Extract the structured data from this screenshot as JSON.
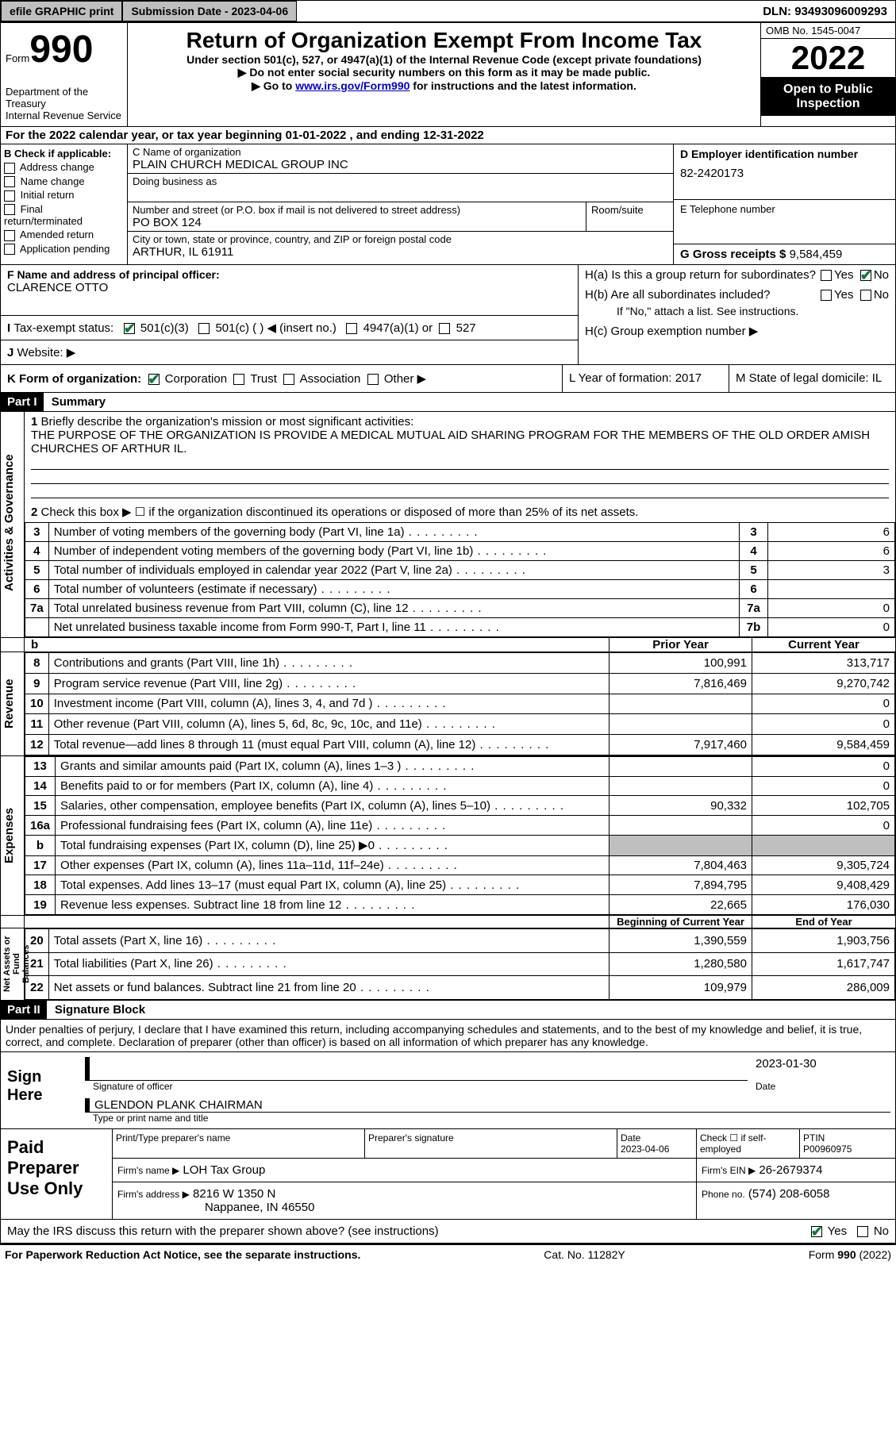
{
  "topbar": {
    "efile": "efile GRAPHIC print",
    "submission_label": "Submission Date - 2023-04-06",
    "dln_label": "DLN: 93493096009293"
  },
  "header": {
    "form_word": "Form",
    "form_no": "990",
    "dept": "Department of the Treasury",
    "irs": "Internal Revenue Service",
    "title": "Return of Organization Exempt From Income Tax",
    "sub1": "Under section 501(c), 527, or 4947(a)(1) of the Internal Revenue Code (except private foundations)",
    "sub2": "▶ Do not enter social security numbers on this form as it may be made public.",
    "sub3_a": "▶ Go to ",
    "sub3_link": "www.irs.gov/Form990",
    "sub3_b": " for instructions and the latest information.",
    "omb": "OMB No. 1545-0047",
    "year": "2022",
    "open": "Open to Public Inspection"
  },
  "A": {
    "text": "For the 2022 calendar year, or tax year beginning 01-01-2022    , and ending 12-31-2022"
  },
  "B": {
    "label": "B Check if applicable:",
    "opts": [
      "Address change",
      "Name change",
      "Initial return",
      "Final return/terminated",
      "Amended return",
      "Application pending"
    ]
  },
  "C": {
    "name_lbl": "C Name of organization",
    "name": "PLAIN CHURCH MEDICAL GROUP INC",
    "dba_lbl": "Doing business as",
    "addr_lbl": "Number and street (or P.O. box if mail is not delivered to street address)",
    "room_lbl": "Room/suite",
    "addr": "PO BOX 124",
    "city_lbl": "City or town, state or province, country, and ZIP or foreign postal code",
    "city": "ARTHUR, IL  61911"
  },
  "D": {
    "lbl": "D Employer identification number",
    "val": "82-2420173"
  },
  "E": {
    "lbl": "E Telephone number"
  },
  "G": {
    "lbl": "G Gross receipts $",
    "val": "9,584,459"
  },
  "F": {
    "lbl": "F  Name and address of principal officer:",
    "val": "CLARENCE OTTO"
  },
  "H": {
    "a_lbl": "H(a)  Is this a group return for subordinates?",
    "b_lbl": "H(b)  Are all subordinates included?",
    "b_note": "If \"No,\" attach a list. See instructions.",
    "c_lbl": "H(c)  Group exemption number ▶",
    "yes": "Yes",
    "no": "No"
  },
  "I": {
    "lbl": "Tax-exempt status:",
    "o1": "501(c)(3)",
    "o2": "501(c) (  ) ◀ (insert no.)",
    "o3": "4947(a)(1) or",
    "o4": "527"
  },
  "J": {
    "lbl": "Website: ▶"
  },
  "K": {
    "lbl": "K Form of organization:",
    "o1": "Corporation",
    "o2": "Trust",
    "o3": "Association",
    "o4": "Other ▶"
  },
  "L": {
    "lbl": "L Year of formation: 2017"
  },
  "M": {
    "lbl": "M State of legal domicile: IL"
  },
  "part1": {
    "hdr": "Part I",
    "title": "Summary"
  },
  "summary": {
    "q1_lbl": "Briefly describe the organization's mission or most significant activities:",
    "q1_val": "THE PURPOSE OF THE ORGANIZATION IS PROVIDE A MEDICAL MUTUAL AID SHARING PROGRAM FOR THE MEMBERS OF THE OLD ORDER AMISH CHURCHES OF ARTHUR IL.",
    "q2": "Check this box ▶ ☐  if the organization discontinued its operations or disposed of more than 25% of its net assets.",
    "lines_ag": [
      {
        "n": "3",
        "t": "Number of voting members of the governing body (Part VI, line 1a)",
        "box": "3",
        "v": "6"
      },
      {
        "n": "4",
        "t": "Number of independent voting members of the governing body (Part VI, line 1b)",
        "box": "4",
        "v": "6"
      },
      {
        "n": "5",
        "t": "Total number of individuals employed in calendar year 2022 (Part V, line 2a)",
        "box": "5",
        "v": "3"
      },
      {
        "n": "6",
        "t": "Total number of volunteers (estimate if necessary)",
        "box": "6",
        "v": ""
      },
      {
        "n": "7a",
        "t": "Total unrelated business revenue from Part VIII, column (C), line 12",
        "box": "7a",
        "v": "0"
      },
      {
        "n": "",
        "t": "Net unrelated business taxable income from Form 990-T, Part I, line 11",
        "box": "7b",
        "v": "0"
      }
    ],
    "prior_hdr": "Prior Year",
    "current_hdr": "Current Year",
    "rev": [
      {
        "n": "8",
        "t": "Contributions and grants (Part VIII, line 1h)",
        "p": "100,991",
        "c": "313,717"
      },
      {
        "n": "9",
        "t": "Program service revenue (Part VIII, line 2g)",
        "p": "7,816,469",
        "c": "9,270,742"
      },
      {
        "n": "10",
        "t": "Investment income (Part VIII, column (A), lines 3, 4, and 7d )",
        "p": "",
        "c": "0"
      },
      {
        "n": "11",
        "t": "Other revenue (Part VIII, column (A), lines 5, 6d, 8c, 9c, 10c, and 11e)",
        "p": "",
        "c": "0"
      },
      {
        "n": "12",
        "t": "Total revenue—add lines 8 through 11 (must equal Part VIII, column (A), line 12)",
        "p": "7,917,460",
        "c": "9,584,459"
      }
    ],
    "exp": [
      {
        "n": "13",
        "t": "Grants and similar amounts paid (Part IX, column (A), lines 1–3 )",
        "p": "",
        "c": "0"
      },
      {
        "n": "14",
        "t": "Benefits paid to or for members (Part IX, column (A), line 4)",
        "p": "",
        "c": "0"
      },
      {
        "n": "15",
        "t": "Salaries, other compensation, employee benefits (Part IX, column (A), lines 5–10)",
        "p": "90,332",
        "c": "102,705"
      },
      {
        "n": "16a",
        "t": "Professional fundraising fees (Part IX, column (A), line 11e)",
        "p": "",
        "c": "0"
      },
      {
        "n": "b",
        "t": "Total fundraising expenses (Part IX, column (D), line 25) ▶0",
        "p": "SHADE",
        "c": "SHADE"
      },
      {
        "n": "17",
        "t": "Other expenses (Part IX, column (A), lines 11a–11d, 11f–24e)",
        "p": "7,804,463",
        "c": "9,305,724"
      },
      {
        "n": "18",
        "t": "Total expenses. Add lines 13–17 (must equal Part IX, column (A), line 25)",
        "p": "7,894,795",
        "c": "9,408,429"
      },
      {
        "n": "19",
        "t": "Revenue less expenses. Subtract line 18 from line 12",
        "p": "22,665",
        "c": "176,030"
      }
    ],
    "na_hdr1": "Beginning of Current Year",
    "na_hdr2": "End of Year",
    "na": [
      {
        "n": "20",
        "t": "Total assets (Part X, line 16)",
        "p": "1,390,559",
        "c": "1,903,756"
      },
      {
        "n": "21",
        "t": "Total liabilities (Part X, line 26)",
        "p": "1,280,580",
        "c": "1,617,747"
      },
      {
        "n": "22",
        "t": "Net assets or fund balances. Subtract line 21 from line 20",
        "p": "109,979",
        "c": "286,009"
      }
    ],
    "vlab_ag": "Activities & Governance",
    "vlab_rev": "Revenue",
    "vlab_exp": "Expenses",
    "vlab_na": "Net Assets or Fund Balances"
  },
  "part2": {
    "hdr": "Part II",
    "title": "Signature Block"
  },
  "sig": {
    "decl": "Under penalties of perjury, I declare that I have examined this return, including accompanying schedules and statements, and to the best of my knowledge and belief, it is true, correct, and complete. Declaration of preparer (other than officer) is based on all information of which preparer has any knowledge.",
    "sign_here": "Sign Here",
    "sig_officer": "Signature of officer",
    "sig_date": "2023-01-30",
    "date_lbl": "Date",
    "typed": "GLENDON PLANK  CHAIRMAN",
    "typed_lbl": "Type or print name and title",
    "paid": "Paid Preparer Use Only",
    "prep_name_lbl": "Print/Type preparer's name",
    "prep_sig_lbl": "Preparer's signature",
    "prep_date_lbl": "Date",
    "prep_date": "2023-04-06",
    "check_self": "Check ☐ if self-employed",
    "ptin_lbl": "PTIN",
    "ptin": "P00960975",
    "firm_name_lbl": "Firm's name    ▶",
    "firm_name": "LOH Tax Group",
    "firm_ein_lbl": "Firm's EIN ▶",
    "firm_ein": "26-2679374",
    "firm_addr_lbl": "Firm's address ▶",
    "firm_addr1": "8216 W 1350 N",
    "firm_addr2": "Nappanee, IN  46550",
    "phone_lbl": "Phone no.",
    "phone": "(574) 208-6058",
    "may_irs": "May the IRS discuss this return with the preparer shown above? (see instructions)",
    "yes": "Yes",
    "no": "No"
  },
  "footer": {
    "left": "For Paperwork Reduction Act Notice, see the separate instructions.",
    "mid": "Cat. No. 11282Y",
    "right": "Form 990 (2022)"
  }
}
